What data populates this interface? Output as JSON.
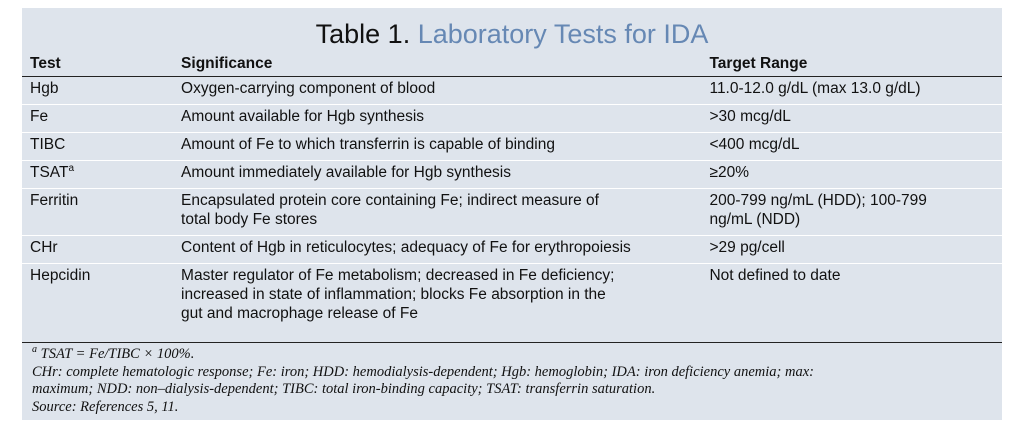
{
  "table": {
    "title_prefix": "Table 1.",
    "title_main": "Laboratory Tests for IDA",
    "headers": {
      "test": "Test",
      "significance": "Significance",
      "range": "Target Range"
    },
    "rows": [
      {
        "test": "Hgb",
        "significance": "Oxygen-carrying component of blood",
        "range": "11.0-12.0 g/dL (max 13.0 g/dL)"
      },
      {
        "test": "Fe",
        "significance": "Amount available for Hgb synthesis",
        "range": ">30 mcg/dL"
      },
      {
        "test": "TIBC",
        "significance": "Amount of Fe to which transferrin is capable of binding",
        "range": "<400 mcg/dL"
      },
      {
        "test": "TSAT",
        "test_sup": "a",
        "significance": "Amount immediately available for Hgb synthesis",
        "range": "≥20%"
      },
      {
        "test": "Ferritin",
        "significance_lines": [
          "Encapsulated protein core containing Fe; indirect measure of",
          "total body Fe stores"
        ],
        "range_lines": [
          "200-799 ng/mL (HDD); 100-799",
          "ng/mL (NDD)"
        ]
      },
      {
        "test": "CHr",
        "significance": "Content of Hgb in reticulocytes; adequacy of Fe for erythropoiesis",
        "range": ">29 pg/cell"
      },
      {
        "test": "Hepcidin",
        "significance_lines": [
          "Master regulator of Fe metabolism; decreased in Fe deficiency;",
          "increased in state of inflammation; blocks Fe absorption in the",
          "gut and macrophage release of Fe"
        ],
        "range": "Not defined to date"
      }
    ],
    "footnotes": {
      "marker": "a",
      "tsat": "TSAT = Fe/TIBC × 100%.",
      "abbreviations_lines": [
        "CHr: complete hematologic response; Fe: iron; HDD: hemodialysis-dependent; Hgb: hemoglobin; IDA: iron deficiency anemia; max:",
        "maximum; NDD: non–dialysis-dependent; TIBC: total iron-binding capacity; TSAT: transferrin saturation."
      ],
      "source": "Source: References 5, 11."
    }
  },
  "colors": {
    "background": "#dee4ec",
    "title_accent": "#6688b4"
  }
}
